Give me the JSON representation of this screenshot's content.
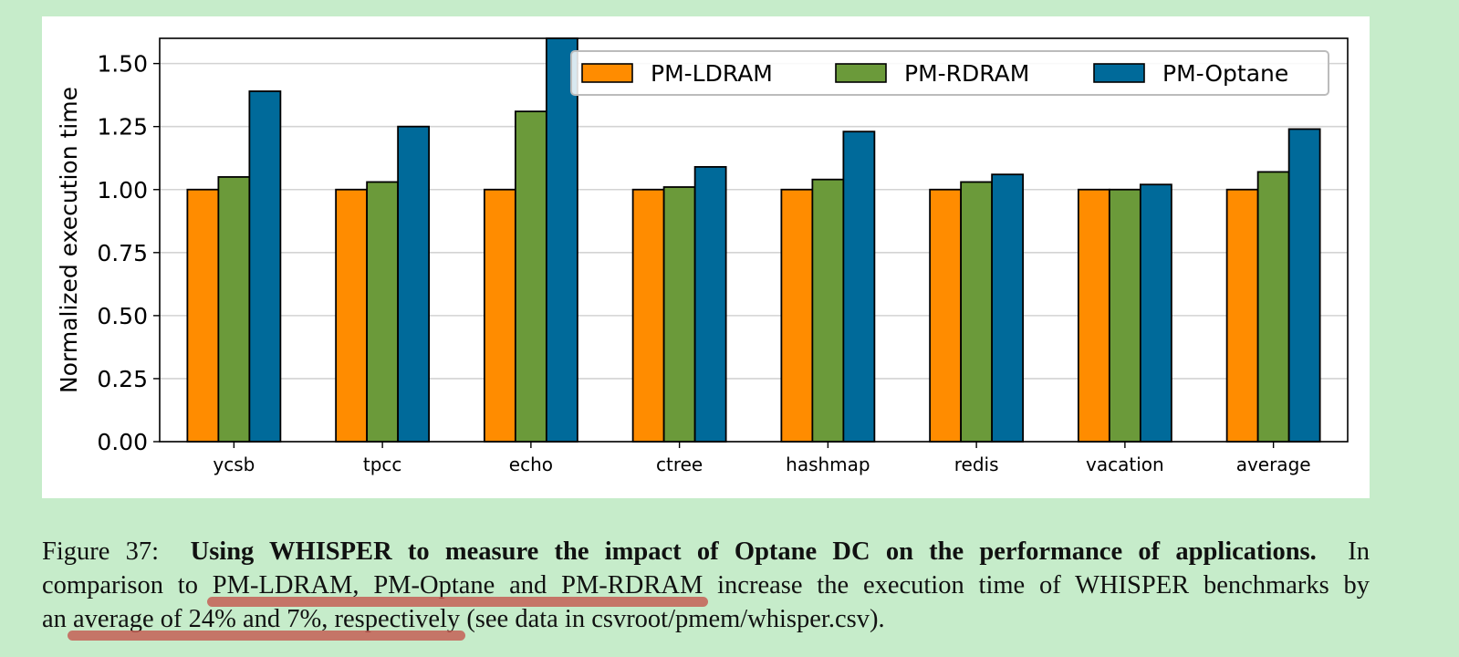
{
  "chart_data": {
    "type": "bar",
    "categories": [
      "ycsb",
      "tpcc",
      "echo",
      "ctree",
      "hashmap",
      "redis",
      "vacation",
      "average"
    ],
    "series": [
      {
        "name": "PM-LDRAM",
        "color": "#ff8c00",
        "values": [
          1.0,
          1.0,
          1.0,
          1.0,
          1.0,
          1.0,
          1.0,
          1.0
        ]
      },
      {
        "name": "PM-RDRAM",
        "color": "#6b9a3a",
        "values": [
          1.05,
          1.03,
          1.31,
          1.01,
          1.04,
          1.03,
          1.0,
          1.07
        ]
      },
      {
        "name": "PM-Optane",
        "color": "#006a9a",
        "values": [
          1.39,
          1.25,
          1.61,
          1.09,
          1.23,
          1.06,
          1.02,
          1.24
        ]
      }
    ],
    "ylabel": "Normalized execution time",
    "xlabel": "",
    "ylim": [
      0,
      1.6
    ],
    "yticks": [
      "0.00",
      "0.25",
      "0.50",
      "0.75",
      "1.00",
      "1.25",
      "1.50"
    ],
    "grid": "horizontal",
    "legend": "top-right"
  },
  "caption": {
    "label": "Figure 37:",
    "title": "Using WHISPER to measure the impact of Optane DC on the performance of applications.",
    "line1_end": "In",
    "line2_start": "comparison to ",
    "line2_highlight": "PM-LDRAM, PM-Optane and PM-RDRAM",
    "line2_end": " increase the execution time of WHISPER benchmarks by",
    "line3_start": "an ",
    "line3_highlight": "average of 24% and 7%, respectively",
    "line3_end": " (see data in csvroot/pmem/whisper.csv)."
  }
}
